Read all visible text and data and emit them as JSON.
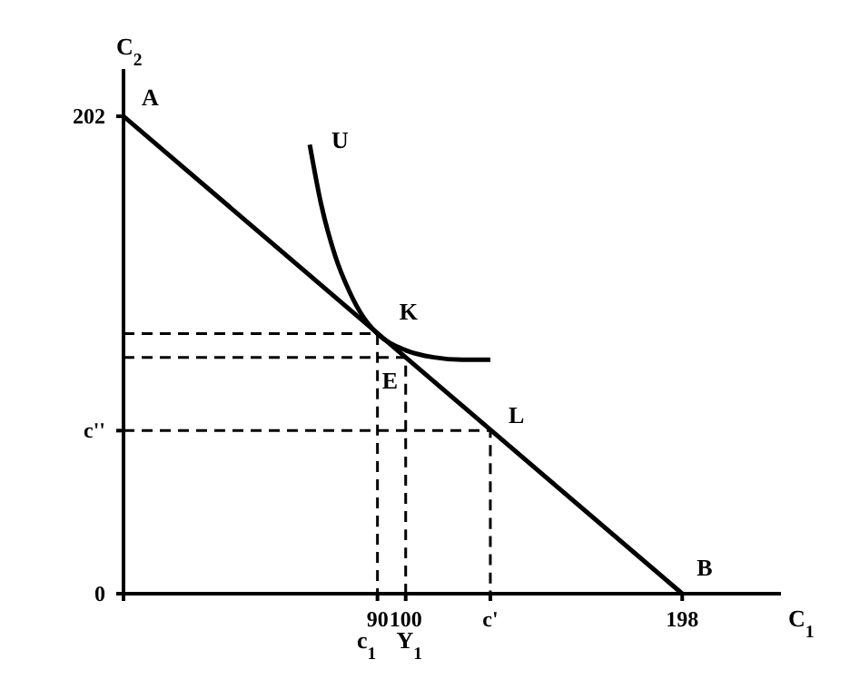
{
  "chart_data": {
    "type": "line",
    "xlabel": "C$_{1}$",
    "ylabel": "C$_{2}$",
    "xlim": [
      0,
      233
    ],
    "ylim": [
      0,
      222
    ],
    "xticks": [
      {
        "value": 0,
        "label": null
      },
      90,
      100,
      {
        "value": 130,
        "label": "c'"
      },
      198
    ],
    "yticks": [
      0,
      {
        "value": 69,
        "label": "c''"
      },
      202
    ],
    "grid": false,
    "marker": "none",
    "series": [
      {
        "color": "#000000",
        "line_style": "solid",
        "x": [
          0,
          198
        ],
        "values": [
          202,
          0
        ]
      },
      {
        "color": "#000000",
        "line_style": "solid",
        "x": [
          66,
          70,
          75,
          80,
          85,
          90,
          100,
          110,
          120,
          130
        ],
        "values": [
          190,
          165,
          143,
          128,
          117,
          110,
          103,
          100,
          99,
          99
        ]
      },
      {
        "color": "#000000",
        "line_style": "dashed",
        "x": [
          0,
          90,
          90
        ],
        "values": [
          110,
          110,
          0
        ]
      },
      {
        "color": "#000000",
        "line_style": "dashed",
        "x": [
          0,
          100,
          100
        ],
        "values": [
          100,
          100,
          0
        ]
      },
      {
        "color": "#000000",
        "line_style": "dashed",
        "x": [
          0,
          130,
          130
        ],
        "values": [
          69,
          69,
          0
        ]
      }
    ],
    "annotations": [
      {
        "text": "A",
        "x": 0,
        "y": 202
      },
      {
        "text": "U",
        "x": 66,
        "y": 190
      },
      {
        "text": "K",
        "x": 90,
        "y": 110
      },
      {
        "text": "E",
        "x": 100,
        "y": 100
      },
      {
        "text": "L",
        "x": 130,
        "y": 69
      },
      {
        "text": "B",
        "x": 198,
        "y": 0
      },
      {
        "text": "c$_{1}$",
        "x": 90,
        "y": 0
      },
      {
        "text": "Y$_{1}$",
        "x": 100,
        "y": 0
      }
    ]
  }
}
